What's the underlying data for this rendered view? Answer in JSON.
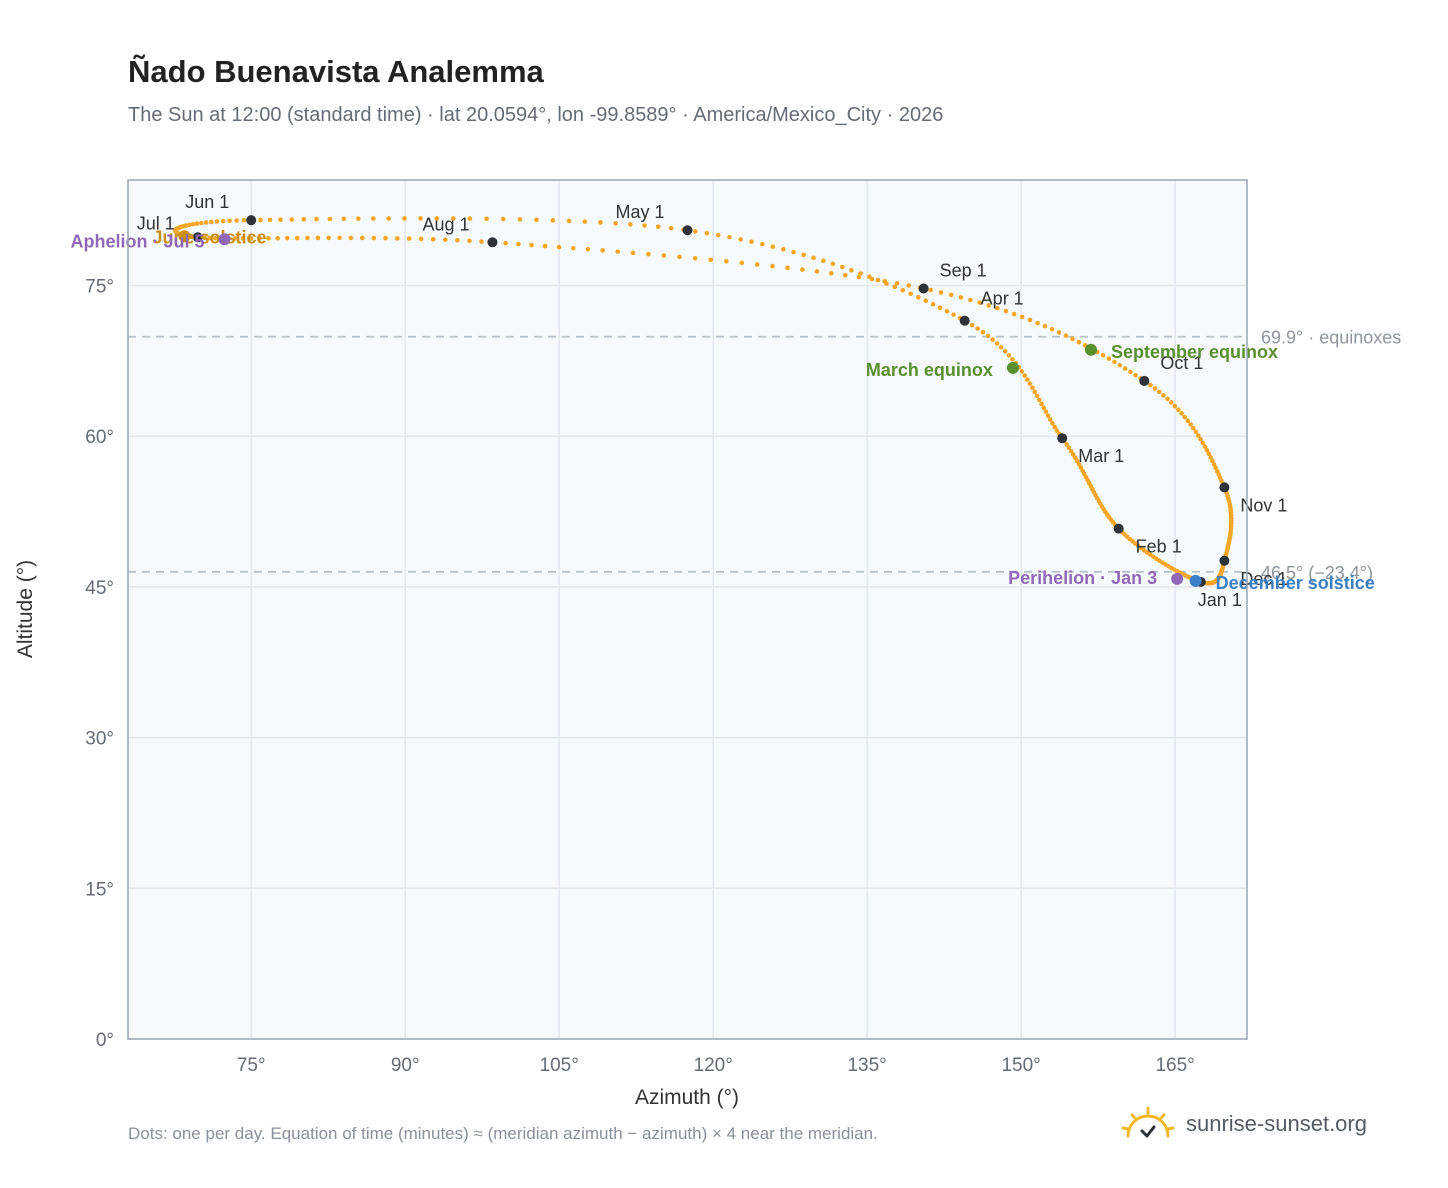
{
  "title": "Ñado Buenavista Analemma",
  "subtitle": "The Sun at 12:00 (standard time) · lat 20.0594°, lon -99.8589° · America/Mexico_City · 2026",
  "footnote": "Dots: one per day. Equation of time (minutes) ≈ (meridian azimuth − azimuth) × 4 near the meridian.",
  "brand": {
    "name": "sunrise-sunset.org",
    "icon": "sun-logo-icon"
  },
  "colors": {
    "curve": "#f5a623",
    "month_dot": "#2d3339",
    "equinox": "#5a8f2e",
    "december_solstice": "#3b7fc4",
    "june_solstice": "#c98f0e",
    "apsis": "#9068b8",
    "reference_line": "#b8c2cc",
    "grid": "#e3e8ee",
    "plot_bg": "#f7fafd",
    "frame": "#9aa5b2"
  },
  "chart_data": {
    "type": "scatter",
    "xlabel": "Azimuth (°)",
    "ylabel": "Altitude (°)",
    "xlim": [
      63,
      172
    ],
    "ylim": [
      0,
      85.5
    ],
    "x_ticks": [
      75,
      90,
      105,
      120,
      135,
      150,
      165
    ],
    "x_tick_labels": [
      "75°",
      "90°",
      "105°",
      "120°",
      "135°",
      "150°",
      "165°"
    ],
    "y_ticks": [
      0,
      15,
      30,
      45,
      60,
      75
    ],
    "y_tick_labels": [
      "0°",
      "15°",
      "30°",
      "45°",
      "60°",
      "75°"
    ],
    "grid": true,
    "reference_lines": [
      {
        "altitude": 69.9,
        "label": "69.9° · equinoxes"
      },
      {
        "altitude": 46.5,
        "label": "46.5° (−23.4°)"
      }
    ],
    "series": [
      {
        "points": [
          [
            167.5,
            45.5
          ],
          [
            159.5,
            50.8
          ],
          [
            154.0,
            59.8
          ],
          [
            144.5,
            71.5
          ],
          [
            117.5,
            80.5
          ],
          [
            75.0,
            81.5
          ],
          [
            69.8,
            79.8
          ],
          [
            98.5,
            79.3
          ],
          [
            140.5,
            74.7
          ],
          [
            162.0,
            65.5
          ],
          [
            169.8,
            54.9
          ],
          [
            169.8,
            47.6
          ]
        ]
      }
    ],
    "months": [
      {
        "label": "Jan 1",
        "az": 167.5,
        "alt": 45.5
      },
      {
        "label": "Feb 1",
        "az": 159.5,
        "alt": 50.8
      },
      {
        "label": "Mar 1",
        "az": 154.0,
        "alt": 59.8
      },
      {
        "label": "Apr 1",
        "az": 144.5,
        "alt": 71.5
      },
      {
        "label": "May 1",
        "az": 117.5,
        "alt": 80.5
      },
      {
        "label": "Jun 1",
        "az": 75.0,
        "alt": 81.5
      },
      {
        "label": "Jul 1",
        "az": 69.8,
        "alt": 79.8
      },
      {
        "label": "Aug 1",
        "az": 98.5,
        "alt": 79.3
      },
      {
        "label": "Sep 1",
        "az": 140.5,
        "alt": 74.7
      },
      {
        "label": "Oct 1",
        "az": 162.0,
        "alt": 65.5
      },
      {
        "label": "Nov 1",
        "az": 169.8,
        "alt": 54.9
      },
      {
        "label": "Dec 1",
        "az": 169.8,
        "alt": 47.6
      }
    ],
    "events": [
      {
        "label": "March equinox",
        "az": 149.2,
        "alt": 66.8,
        "color": "#5a8f2e"
      },
      {
        "label": "September equinox",
        "az": 156.8,
        "alt": 68.6,
        "color": "#5a8f2e"
      },
      {
        "label": "June solstice",
        "az": 68.5,
        "alt": 79.9,
        "color": "#c98f0e"
      },
      {
        "label": "December solstice",
        "az": 167.0,
        "alt": 45.6,
        "color": "#3b7fc4"
      },
      {
        "label": "Perihelion · Jan 3",
        "az": 165.2,
        "alt": 45.8,
        "color": "#9068b8"
      },
      {
        "label": "Aphelion · Jul 5",
        "az": 72.4,
        "alt": 79.6,
        "color": "#9068b8"
      }
    ]
  }
}
